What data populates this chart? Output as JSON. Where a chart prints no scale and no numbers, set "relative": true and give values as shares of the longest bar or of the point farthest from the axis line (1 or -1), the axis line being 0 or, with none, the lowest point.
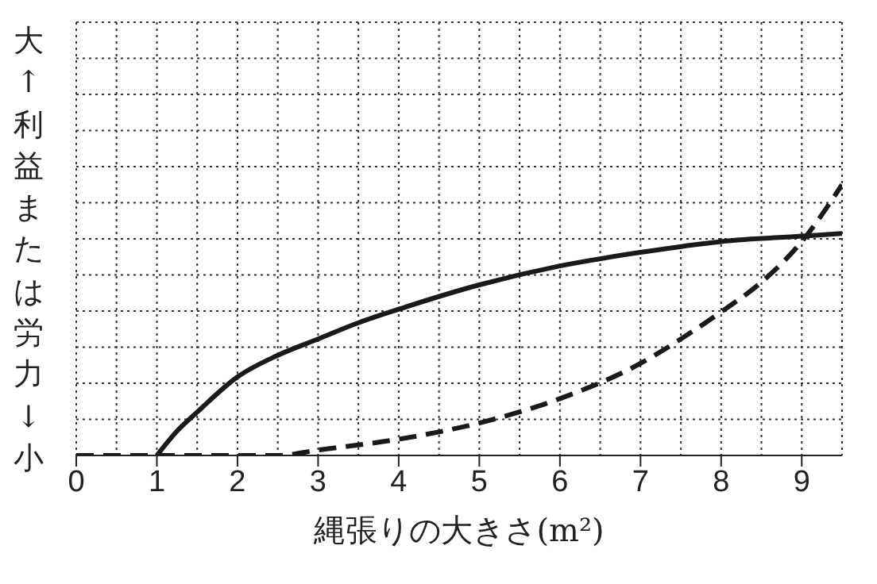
{
  "chart_data": {
    "type": "line",
    "relative": true,
    "xlabel": "縄張りの大きさ(m²)",
    "ylabel": "大↑利益または労力↓小",
    "xlim": [
      0,
      9.5
    ],
    "xticks": [
      0,
      1,
      2,
      3,
      4,
      5,
      6,
      7,
      8,
      9
    ],
    "grid": true,
    "marker": "none",
    "series": [
      {
        "color": "#1a1a1a",
        "line_style": "solid",
        "x": [
          1,
          1.25,
          1.5,
          2,
          2.5,
          3,
          3.5,
          4,
          5,
          6,
          7,
          8,
          9,
          9.5
        ],
        "values": [
          0,
          0.09,
          0.16,
          0.29,
          0.37,
          0.43,
          0.49,
          0.54,
          0.63,
          0.7,
          0.75,
          0.79,
          0.81,
          0.82
        ]
      },
      {
        "color": "#1a1a1a",
        "line_style": "dashed",
        "x": [
          0,
          1,
          2,
          2.5,
          3,
          4,
          5,
          6,
          7,
          7.5,
          8,
          8.5,
          9,
          9.5
        ],
        "values": [
          0,
          0,
          0,
          0,
          0.02,
          0.06,
          0.12,
          0.21,
          0.34,
          0.43,
          0.53,
          0.64,
          0.79,
          1
        ]
      }
    ]
  }
}
